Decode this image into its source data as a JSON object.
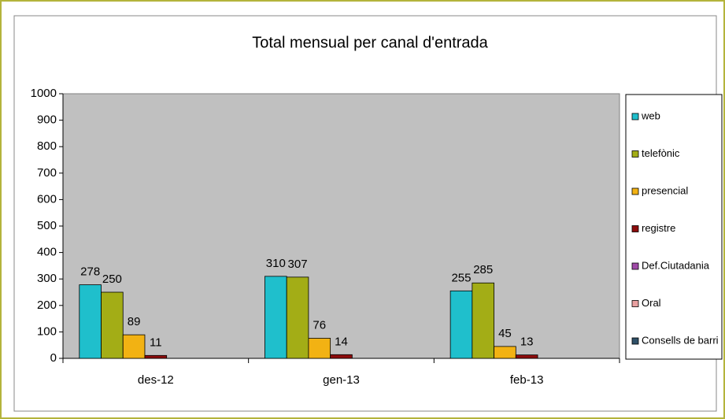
{
  "chart_data": {
    "type": "bar",
    "title": "Total mensual per canal d'entrada",
    "categories": [
      "des-12",
      "gen-13",
      "feb-13"
    ],
    "series": [
      {
        "name": "web",
        "color": "#1fbfcc",
        "values": [
          278,
          310,
          255
        ]
      },
      {
        "name": "telefònic",
        "color": "#a3ad16",
        "values": [
          250,
          307,
          285
        ]
      },
      {
        "name": "presencial",
        "color": "#f2b213",
        "values": [
          89,
          76,
          45
        ]
      },
      {
        "name": "registre",
        "color": "#8c0c0c",
        "values": [
          11,
          14,
          13
        ]
      },
      {
        "name": "Def.Ciutadania",
        "color": "#a04aa8",
        "values": [
          null,
          null,
          null
        ]
      },
      {
        "name": "Oral",
        "color": "#e8a0a0",
        "values": [
          null,
          null,
          null
        ]
      },
      {
        "name": "Consells de barri",
        "color": "#2f5068",
        "values": [
          null,
          null,
          null
        ]
      }
    ],
    "ylim": [
      0,
      1000
    ],
    "yticks": [
      0,
      100,
      200,
      300,
      400,
      500,
      600,
      700,
      800,
      900,
      1000
    ],
    "legend": "right"
  }
}
